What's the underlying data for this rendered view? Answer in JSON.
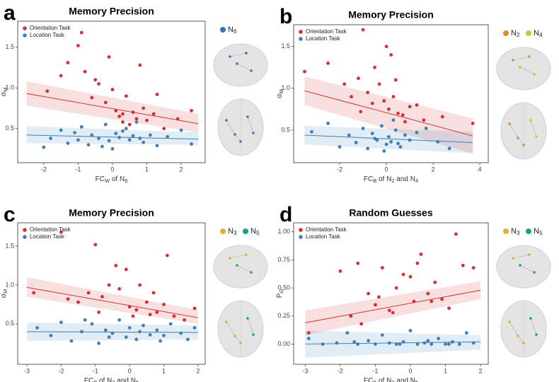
{
  "chart_data": [
    {
      "type": "scatter",
      "panel": "a",
      "title": "Memory Precision",
      "xlabel": [
        "FC",
        "W",
        " of N",
        "6"
      ],
      "ylabel": [
        "σ",
        "M"
      ],
      "xlim": [
        -2.76,
        2.7
      ],
      "xticks": [
        -2,
        -1,
        0,
        1,
        2
      ],
      "ylim": [
        0.08,
        1.82
      ],
      "yticks": [
        0.5,
        {
          "value": 1.0,
          "label": "1.0"
        },
        1.5
      ],
      "networks": [
        {
          "label": [
            "N",
            "6"
          ],
          "color": "#3b74b4"
        }
      ],
      "series": [
        {
          "name": "Orientation Task",
          "color": "#d62f2f",
          "x": [
            -1.3,
            -1.0,
            -0.9,
            -0.8,
            -0.5,
            -0.4,
            -0.2,
            -0.1,
            0.0,
            0.1,
            0.2,
            0.3,
            0.4,
            0.5,
            0.6,
            0.7,
            0.8,
            0.9,
            1.0,
            1.2,
            1.5,
            1.9,
            2.3,
            -1.9,
            -1.5,
            -0.6,
            0.3,
            1.3
          ],
          "values": [
            1.31,
            1.52,
            1.68,
            1.2,
            1.1,
            1.05,
            0.82,
            1.38,
            0.98,
            0.72,
            0.65,
            0.68,
            0.9,
            0.55,
            0.7,
            0.62,
            1.28,
            0.75,
            0.6,
            0.68,
            0.5,
            0.62,
            0.72,
            0.96,
            1.15,
            0.88,
            0.58,
            0.92
          ],
          "trend": {
            "x": [
              -2.5,
              2.5
            ],
            "y": [
              0.93,
              0.56
            ],
            "lower": [
              0.78,
              0.45
            ],
            "upper": [
              1.08,
              0.68
            ]
          }
        },
        {
          "name": "Location Task",
          "color": "#3f7fb8",
          "x": [
            -2.0,
            -1.8,
            -1.5,
            -1.3,
            -1.1,
            -0.9,
            -0.7,
            -0.6,
            -0.4,
            -0.3,
            -0.2,
            -0.1,
            0.0,
            0.1,
            0.2,
            0.3,
            0.5,
            0.6,
            0.7,
            0.9,
            1.1,
            1.3,
            1.6,
            2.0,
            2.3,
            -1.0,
            0.4,
            0.8
          ],
          "values": [
            0.27,
            0.38,
            0.48,
            0.32,
            0.45,
            0.52,
            0.3,
            0.42,
            0.38,
            0.28,
            0.55,
            0.35,
            0.25,
            0.44,
            0.39,
            0.47,
            0.36,
            0.41,
            0.58,
            0.33,
            0.42,
            0.29,
            0.4,
            0.48,
            0.31,
            0.36,
            0.5,
            0.38
          ],
          "trend": {
            "x": [
              -2.5,
              2.5
            ],
            "y": [
              0.42,
              0.37
            ],
            "lower": [
              0.32,
              0.3
            ],
            "upper": [
              0.53,
              0.45
            ]
          }
        }
      ]
    },
    {
      "type": "scatter",
      "panel": "b",
      "title": "Memory Precision",
      "xlabel": [
        "FC",
        "B",
        " of N",
        "2",
        " and N",
        "4"
      ],
      "ylabel": [
        "σ",
        "M"
      ],
      "xlim": [
        -3.97,
        4.36
      ],
      "xticks": [
        -2,
        0,
        2,
        4
      ],
      "ylim": [
        0.11,
        1.76
      ],
      "yticks": [
        0.5,
        {
          "value": 1.0,
          "label": "1.0"
        },
        1.5
      ],
      "networks": [
        {
          "label": [
            "N",
            "2"
          ],
          "color": "#e6892c"
        },
        {
          "label": [
            "N",
            "4"
          ],
          "color": "#c3c73a"
        }
      ],
      "series": [
        {
          "name": "Orientation Task",
          "color": "#d62f2f",
          "x": [
            -3.5,
            -2.5,
            -1.8,
            -1.5,
            -1.2,
            -1.0,
            -0.8,
            -0.5,
            -0.3,
            -0.1,
            0.0,
            0.1,
            0.2,
            0.3,
            0.5,
            0.7,
            1.0,
            1.3,
            1.6,
            2.4,
            3.7,
            -0.6,
            0.4,
            -1.1,
            0.8
          ],
          "values": [
            1.2,
            1.3,
            1.05,
            0.9,
            1.12,
            1.7,
            0.95,
            1.25,
            1.05,
            0.85,
            1.5,
            0.75,
            1.4,
            0.9,
            0.7,
            0.68,
            0.78,
            0.8,
            0.62,
            0.66,
            0.58,
            0.82,
            1.1,
            0.72,
            0.6
          ],
          "trend": {
            "x": [
              -3.5,
              3.7
            ],
            "y": [
              0.97,
              0.43
            ],
            "lower": [
              0.8,
              0.22
            ],
            "upper": [
              1.14,
              0.64
            ]
          }
        },
        {
          "name": "Location Task",
          "color": "#3f7fb8",
          "x": [
            -3.2,
            -2.5,
            -2.0,
            -1.6,
            -1.3,
            -1.0,
            -0.8,
            -0.6,
            -0.4,
            -0.2,
            0.0,
            0.1,
            0.2,
            0.4,
            0.6,
            0.8,
            1.0,
            1.3,
            1.7,
            2.2,
            2.7,
            -0.5,
            0.3,
            0.5,
            -0.1
          ],
          "values": [
            0.48,
            0.58,
            0.3,
            0.44,
            0.35,
            0.52,
            0.28,
            0.46,
            0.38,
            0.55,
            0.33,
            0.42,
            0.36,
            0.5,
            0.3,
            0.44,
            0.38,
            0.47,
            0.52,
            0.36,
            0.28,
            0.4,
            0.62,
            0.34,
            0.25
          ],
          "trend": {
            "x": [
              -3.5,
              3.7
            ],
            "y": [
              0.44,
              0.35
            ],
            "lower": [
              0.33,
              0.22
            ],
            "upper": [
              0.55,
              0.48
            ]
          }
        }
      ]
    },
    {
      "type": "scatter",
      "panel": "c",
      "title": "Memory Precision",
      "xlabel": [
        "FC",
        "B",
        " of N",
        "3",
        " and N",
        "5"
      ],
      "ylabel": [
        "σ",
        "M"
      ],
      "xlim": [
        -3.27,
        2.21
      ],
      "xticks": [
        -3,
        -2,
        -1,
        0,
        1,
        2
      ],
      "ylim": [
        -0.02,
        1.8
      ],
      "yticks": [
        0.5,
        {
          "value": 1.0,
          "label": "1.0"
        },
        1.5
      ],
      "networks": [
        {
          "label": [
            "N",
            "3"
          ],
          "color": "#e0b02a"
        },
        {
          "label": [
            "N",
            "5"
          ],
          "color": "#1b9e8f"
        }
      ],
      "series": [
        {
          "name": "Orientation Task",
          "color": "#d62f2f",
          "x": [
            -2.8,
            -2.0,
            -1.8,
            -1.5,
            -1.2,
            -1.0,
            -0.8,
            -0.6,
            -0.4,
            -0.3,
            -0.1,
            0.0,
            0.2,
            0.3,
            0.5,
            0.6,
            0.8,
            1.0,
            1.1,
            1.3,
            1.6,
            1.9,
            -0.9,
            0.1,
            0.7
          ],
          "values": [
            0.9,
            1.68,
            0.82,
            0.78,
            0.9,
            1.52,
            0.85,
            1.0,
            1.25,
            0.95,
            1.2,
            0.72,
            0.68,
            1.0,
            0.78,
            0.62,
            0.65,
            0.75,
            1.38,
            0.6,
            0.55,
            0.7,
            0.65,
            0.6,
            0.9
          ],
          "trend": {
            "x": [
              -3,
              2
            ],
            "y": [
              0.97,
              0.58
            ],
            "lower": [
              0.85,
              0.5
            ],
            "upper": [
              1.1,
              0.68
            ]
          }
        },
        {
          "name": "Location Task",
          "color": "#3f7fb8",
          "x": [
            -2.7,
            -2.3,
            -2.0,
            -1.7,
            -1.4,
            -1.1,
            -0.9,
            -0.7,
            -0.5,
            -0.3,
            -0.1,
            0.0,
            0.2,
            0.4,
            0.6,
            0.8,
            1.0,
            1.2,
            1.5,
            1.7,
            1.9,
            -1.3,
            0.3,
            0.9,
            -0.6
          ],
          "values": [
            0.45,
            0.35,
            0.52,
            0.28,
            0.4,
            0.5,
            0.25,
            0.42,
            0.38,
            0.55,
            0.33,
            0.45,
            0.3,
            0.48,
            0.36,
            0.42,
            0.35,
            0.5,
            0.38,
            0.3,
            0.45,
            0.55,
            0.4,
            0.28,
            0.33
          ],
          "trend": {
            "x": [
              -3,
              2
            ],
            "y": [
              0.4,
              0.39
            ],
            "lower": [
              0.28,
              0.3
            ],
            "upper": [
              0.52,
              0.48
            ]
          }
        }
      ]
    },
    {
      "type": "scatter",
      "panel": "d",
      "title": "Random Guesses",
      "xlabel": [
        "FC",
        "B",
        " of N",
        "3",
        " and N",
        "5"
      ],
      "ylabel": [
        "P",
        "G"
      ],
      "xlim": [
        -3.33,
        2.22
      ],
      "xticks": [
        -3,
        -2,
        -1,
        0,
        1,
        2
      ],
      "ylim": [
        -0.18,
        1.08
      ],
      "yticks": [
        {
          "value": 0,
          "label": "0.00"
        },
        0.25,
        {
          "value": 0.5,
          "label": "0.50"
        },
        0.75,
        {
          "value": 1,
          "label": "1.00"
        }
      ],
      "networks": [
        {
          "label": [
            "N",
            "3"
          ],
          "color": "#e0b02a"
        },
        {
          "label": [
            "N",
            "5"
          ],
          "color": "#1b9e8f"
        }
      ],
      "series": [
        {
          "name": "Orientation Task",
          "color": "#d62f2f",
          "x": [
            -2.9,
            -2.0,
            -1.7,
            -1.5,
            -1.2,
            -1.0,
            -0.8,
            -0.6,
            -0.4,
            -0.2,
            0.0,
            0.1,
            0.3,
            0.5,
            0.7,
            0.9,
            1.1,
            1.3,
            1.5,
            1.8,
            -1.4,
            -0.5,
            0.6,
            0.2,
            -0.9
          ],
          "values": [
            0.1,
            0.65,
            0.25,
            0.72,
            0.45,
            0.35,
            0.68,
            0.3,
            0.5,
            0.62,
            0.6,
            0.38,
            0.8,
            0.45,
            0.55,
            0.4,
            0.32,
            0.98,
            0.7,
            0.68,
            0.18,
            0.28,
            0.38,
            0.72,
            0.42
          ],
          "trend": {
            "x": [
              -3,
              2
            ],
            "y": [
              0.19,
              0.48
            ],
            "lower": [
              0.08,
              0.4
            ],
            "upper": [
              0.3,
              0.56
            ]
          }
        },
        {
          "name": "Location Task",
          "color": "#3f7fb8",
          "x": [
            -2.9,
            -2.5,
            -2.1,
            -1.8,
            -1.5,
            -1.2,
            -1.0,
            -0.8,
            -0.6,
            -0.4,
            -0.2,
            0.0,
            0.2,
            0.4,
            0.6,
            0.8,
            1.0,
            1.2,
            1.4,
            1.6,
            1.8,
            -0.3,
            0.5,
            -1.6,
            1.1
          ],
          "values": [
            0.05,
            0.0,
            0.01,
            0.1,
            0.0,
            0.03,
            0.0,
            0.08,
            0.01,
            0.0,
            0.02,
            0.12,
            0.0,
            0.01,
            0.0,
            0.05,
            0.0,
            0.02,
            0.0,
            0.1,
            0.01,
            0.0,
            0.03,
            0.02,
            0.0
          ],
          "trend": {
            "x": [
              -3,
              2
            ],
            "y": [
              0.0,
              0.02
            ],
            "lower": [
              -0.12,
              -0.05
            ],
            "upper": [
              0.12,
              0.08
            ]
          }
        }
      ]
    }
  ]
}
